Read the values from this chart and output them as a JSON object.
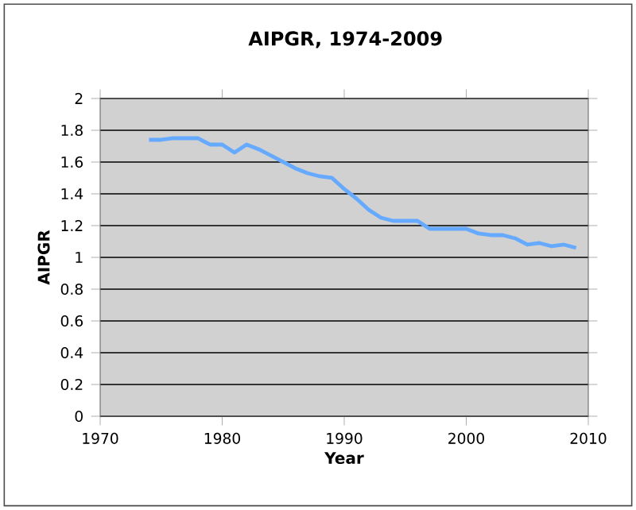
{
  "chart_data": {
    "type": "line",
    "title": "AIPGR, 1974-2009",
    "xlabel": "Year",
    "ylabel": "AIPGR",
    "x": [
      1974,
      1975,
      1976,
      1977,
      1978,
      1979,
      1980,
      1981,
      1982,
      1983,
      1984,
      1985,
      1986,
      1987,
      1988,
      1989,
      1990,
      1991,
      1992,
      1993,
      1994,
      1995,
      1996,
      1997,
      1998,
      1999,
      2000,
      2001,
      2002,
      2003,
      2004,
      2005,
      2006,
      2007,
      2008,
      2009
    ],
    "series": [
      {
        "color": "#66aaff",
        "values": [
          1.74,
          1.74,
          1.75,
          1.75,
          1.75,
          1.71,
          1.71,
          1.66,
          1.71,
          1.68,
          1.64,
          1.6,
          1.56,
          1.53,
          1.51,
          1.5,
          1.43,
          1.37,
          1.3,
          1.25,
          1.23,
          1.23,
          1.23,
          1.18,
          1.18,
          1.18,
          1.18,
          1.15,
          1.14,
          1.14,
          1.12,
          1.08,
          1.09,
          1.07,
          1.08,
          1.06
        ]
      }
    ],
    "xlim": [
      1970,
      2010
    ],
    "xticks": [
      1970,
      1980,
      1990,
      2000,
      2010
    ],
    "ylim": [
      0,
      2
    ],
    "yticks": [
      0,
      0.2,
      0.4,
      0.6,
      0.8,
      1,
      1.2,
      1.4,
      1.6,
      1.8,
      2
    ],
    "grid": "y",
    "marker": "none",
    "line_style": "solid"
  }
}
